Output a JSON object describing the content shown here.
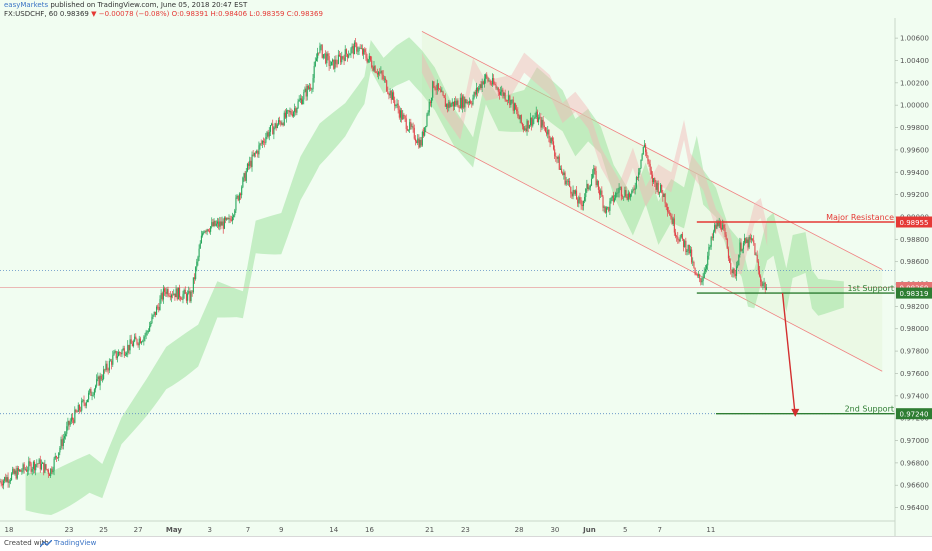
{
  "header": {
    "publisher": "easyMarkets",
    "published": "published on TradingView.com, June 05, 2018 20:47 EST",
    "symbol": "FX:USDCHF, 60",
    "last": "0.98369",
    "change": "−0.00078 (−0.08%)",
    "ohlc": "O:0.98391 H:0.98406 L:0.98359 C:0.98369"
  },
  "footer": {
    "created_with": "Created with",
    "brand": "TradingView"
  },
  "chart_data": {
    "type": "candlestick",
    "title": "FX:USDCHF, 60",
    "x_ticks": [
      "18",
      "23",
      "25",
      "27",
      "May",
      "3",
      "7",
      "9",
      "14",
      "16",
      "21",
      "23",
      "28",
      "30",
      "Jun",
      "5",
      "7",
      "11"
    ],
    "y_ticks": [
      "0.96400",
      "0.96600",
      "0.96800",
      "0.97000",
      "0.97200",
      "0.97400",
      "0.97600",
      "0.97800",
      "0.98000",
      "0.98200",
      "0.98400",
      "0.98600",
      "0.98800",
      "0.99000",
      "0.99200",
      "0.99400",
      "0.99600",
      "0.99800",
      "1.00000",
      "1.00200",
      "1.00400",
      "1.00600"
    ],
    "ylim": [
      0.9628,
      1.0078
    ],
    "price_path": [
      {
        "t": 0.0,
        "p": 0.9663
      },
      {
        "t": 3.0,
        "p": 0.968
      },
      {
        "t": 4.0,
        "p": 0.9672
      },
      {
        "t": 5.5,
        "p": 0.9715
      },
      {
        "t": 7.5,
        "p": 0.9748
      },
      {
        "t": 9.0,
        "p": 0.9775
      },
      {
        "t": 11.5,
        "p": 0.9795
      },
      {
        "t": 13.0,
        "p": 0.9835
      },
      {
        "t": 15.0,
        "p": 0.9828
      },
      {
        "t": 16.0,
        "p": 0.989
      },
      {
        "t": 18.0,
        "p": 0.9895
      },
      {
        "t": 19.5,
        "p": 0.9945
      },
      {
        "t": 21.0,
        "p": 0.9975
      },
      {
        "t": 23.0,
        "p": 0.9995
      },
      {
        "t": 24.5,
        "p": 1.002
      },
      {
        "t": 25.0,
        "p": 1.0052
      },
      {
        "t": 26.0,
        "p": 1.0035
      },
      {
        "t": 27.0,
        "p": 1.0045
      },
      {
        "t": 28.0,
        "p": 1.0052
      },
      {
        "t": 29.0,
        "p": 1.004
      },
      {
        "t": 30.0,
        "p": 1.0025
      },
      {
        "t": 31.5,
        "p": 0.999
      },
      {
        "t": 33.0,
        "p": 0.9965
      },
      {
        "t": 34.0,
        "p": 1.002
      },
      {
        "t": 35.0,
        "p": 1.0
      },
      {
        "t": 37.0,
        "p": 1.0005
      },
      {
        "t": 38.0,
        "p": 1.0025
      },
      {
        "t": 40.0,
        "p": 1.0005
      },
      {
        "t": 41.0,
        "p": 0.998
      },
      {
        "t": 42.0,
        "p": 0.999
      },
      {
        "t": 43.0,
        "p": 0.9975
      },
      {
        "t": 44.0,
        "p": 0.994
      },
      {
        "t": 45.5,
        "p": 0.991
      },
      {
        "t": 46.5,
        "p": 0.994
      },
      {
        "t": 47.5,
        "p": 0.9905
      },
      {
        "t": 48.5,
        "p": 0.9925
      },
      {
        "t": 49.5,
        "p": 0.9918
      },
      {
        "t": 50.5,
        "p": 0.9965
      },
      {
        "t": 51.0,
        "p": 0.9935
      },
      {
        "t": 52.0,
        "p": 0.992
      },
      {
        "t": 53.0,
        "p": 0.9885
      },
      {
        "t": 54.0,
        "p": 0.987
      },
      {
        "t": 54.5,
        "p": 0.9845
      },
      {
        "t": 55.0,
        "p": 0.9845
      },
      {
        "t": 56.0,
        "p": 0.989
      },
      {
        "t": 56.5,
        "p": 0.9895
      },
      {
        "t": 57.5,
        "p": 0.9845
      },
      {
        "t": 58.0,
        "p": 0.9875
      },
      {
        "t": 59.0,
        "p": 0.9878
      },
      {
        "t": 59.5,
        "p": 0.9845
      },
      {
        "t": 60.0,
        "p": 0.9837
      }
    ],
    "x_span": [
      0,
      70
    ],
    "cloud_color": "#9ee29e",
    "channel_color": "#f08080",
    "levels": [
      {
        "name": "Major Resistance",
        "value": 0.98955,
        "label": "0.98955",
        "color": "#e53935"
      },
      {
        "name": "1st Support",
        "value": 0.98319,
        "label": "0.98319",
        "color": "#2e7d32"
      },
      {
        "name": "2nd Support",
        "value": 0.9724,
        "label": "0.97240",
        "color": "#2e7d32"
      }
    ],
    "current_price": {
      "value": 0.98369,
      "label": "0.98369",
      "color": "#e57373"
    },
    "dotted_level": 0.9852,
    "projection": {
      "from": 0.9832,
      "to": 0.9722
    }
  }
}
